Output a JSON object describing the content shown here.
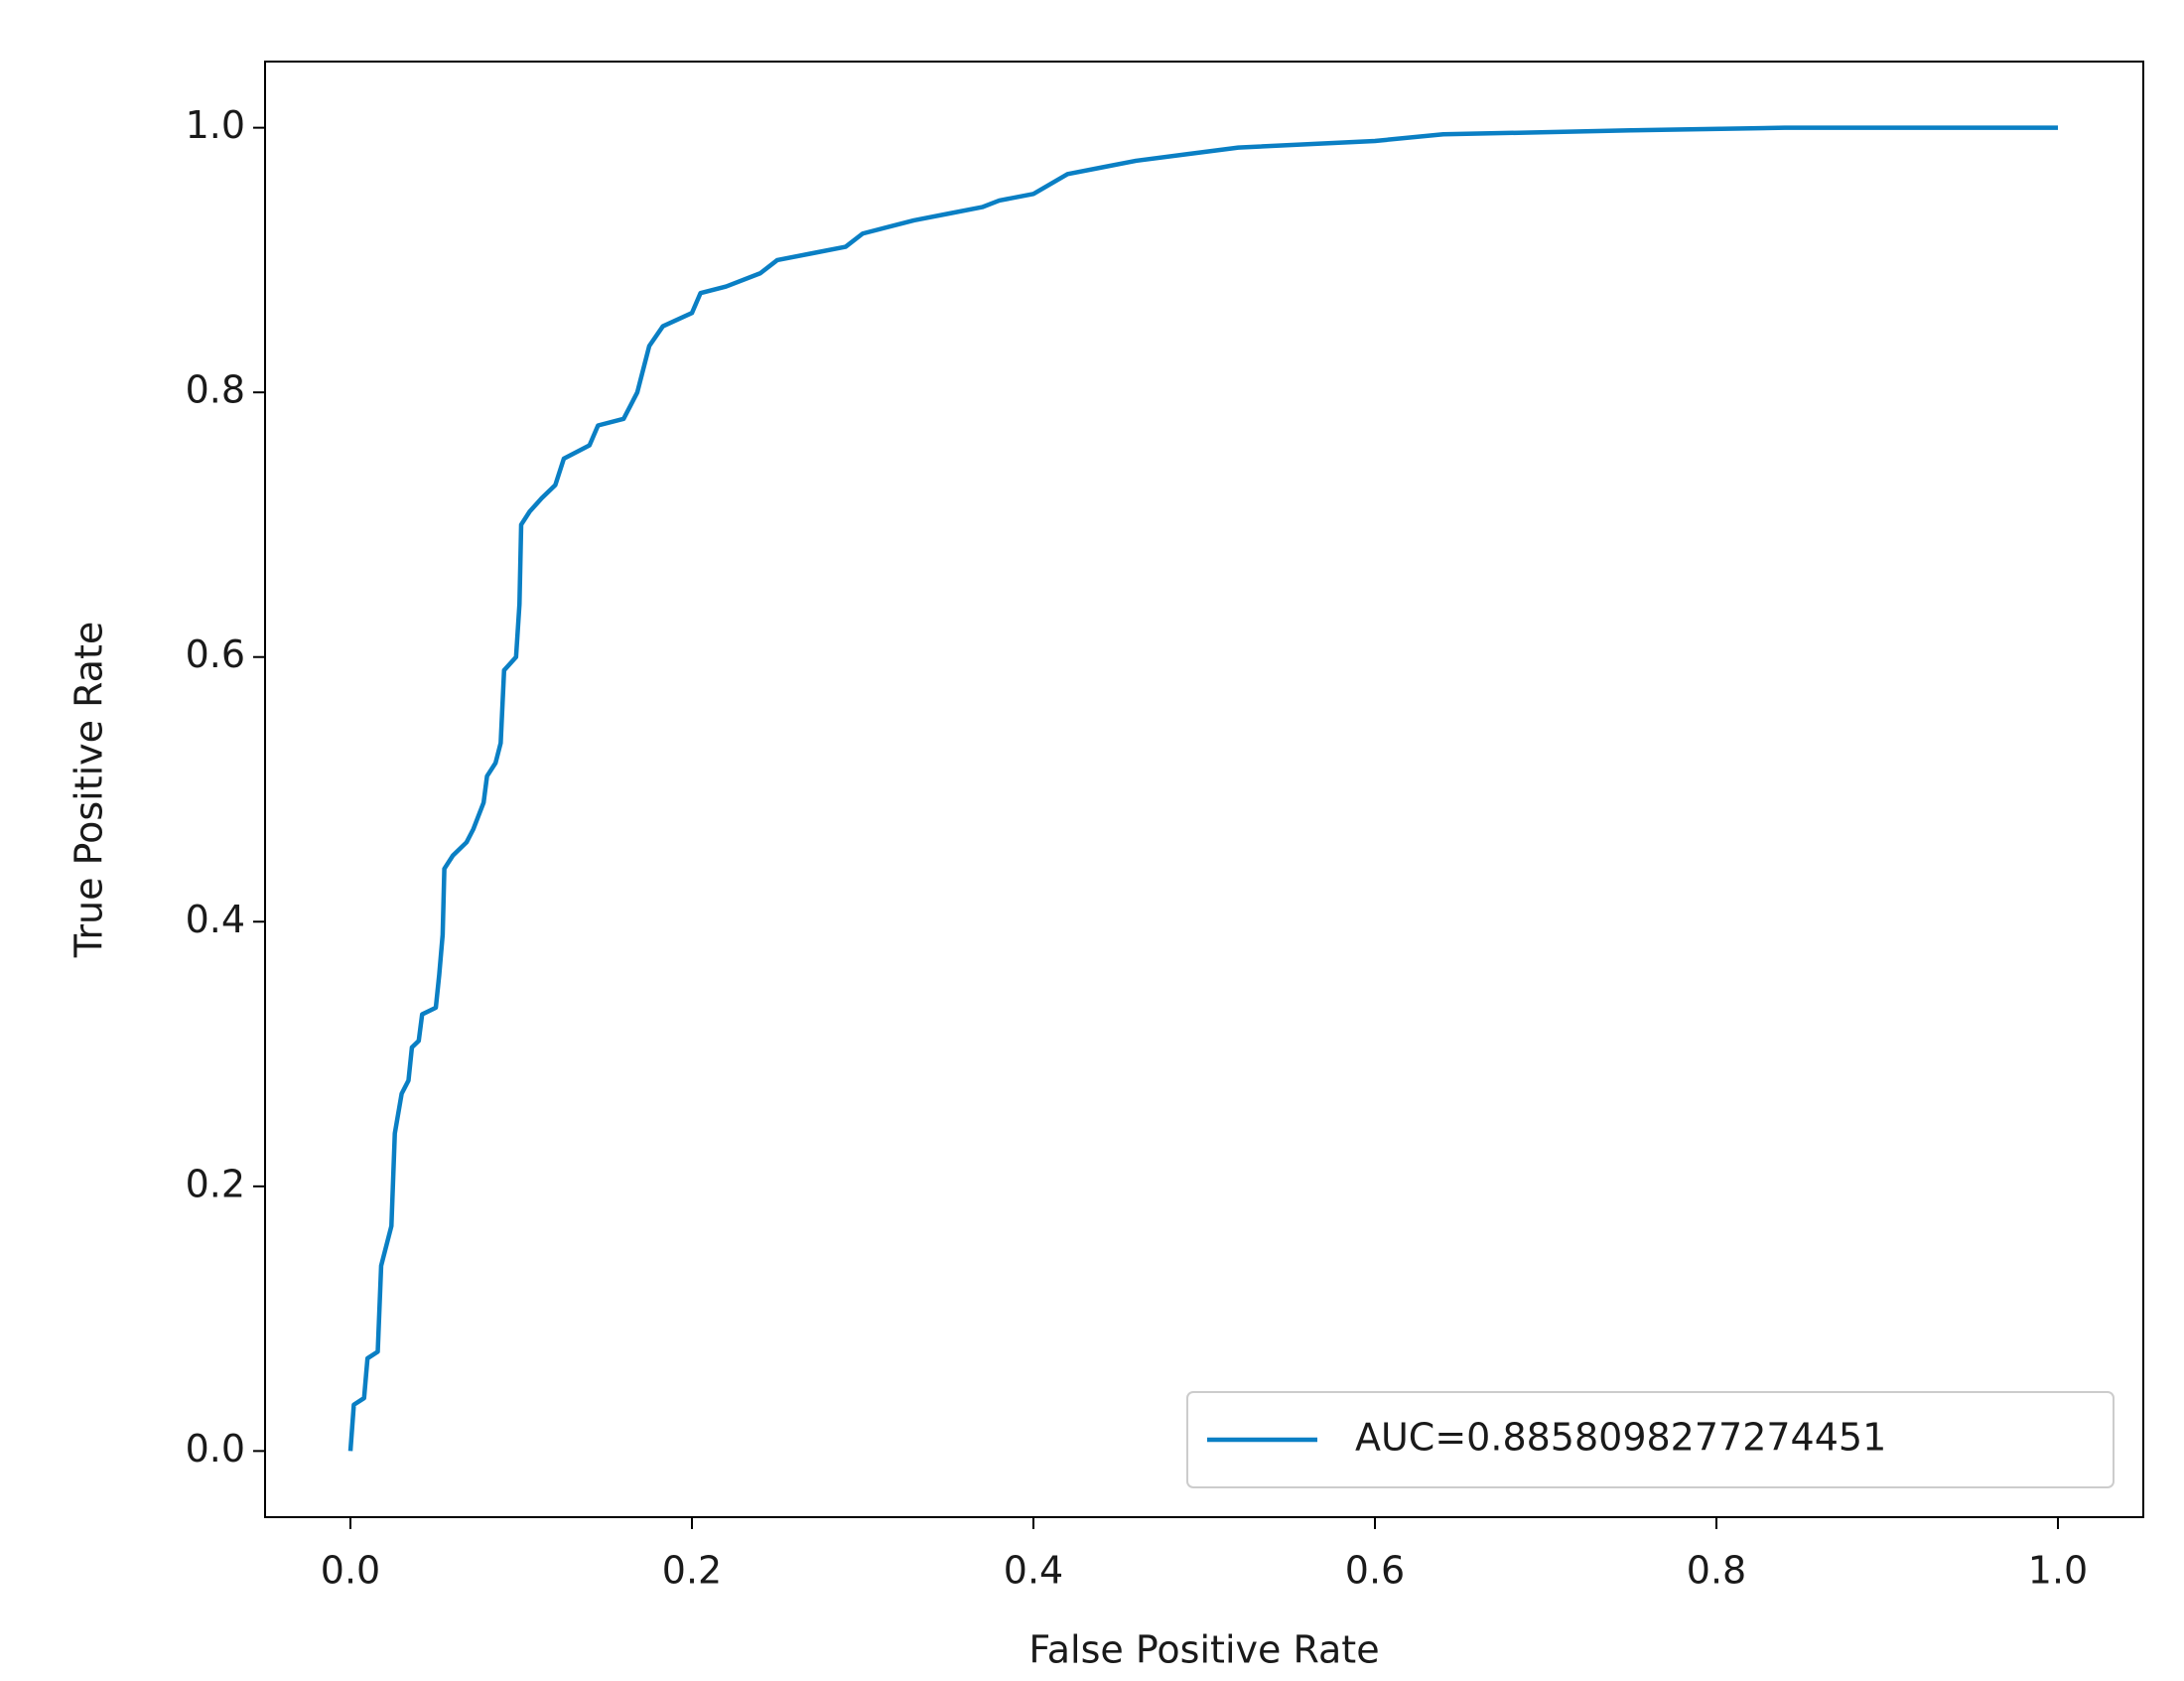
{
  "chart_data": {
    "type": "line",
    "x_label": "False Positive Rate",
    "y_label": "True Positive Rate",
    "xlim": [
      -0.05,
      1.05
    ],
    "ylim": [
      -0.05,
      1.05
    ],
    "xticks": [
      {
        "value": 0,
        "label": "0.0"
      },
      0.2,
      0.4,
      0.6,
      0.8,
      {
        "value": 1,
        "label": "1.0"
      }
    ],
    "yticks": [
      {
        "value": 0,
        "label": "0.0"
      },
      0.2,
      0.4,
      0.6,
      0.8,
      {
        "value": 1,
        "label": "1.0"
      }
    ],
    "legend": "lower right",
    "x": [
      0.0,
      0.002,
      0.008,
      0.01,
      0.016,
      0.018,
      0.024,
      0.026,
      0.03,
      0.034,
      0.036,
      0.04,
      0.042,
      0.05,
      0.052,
      0.054,
      0.055,
      0.06,
      0.068,
      0.072,
      0.078,
      0.08,
      0.085,
      0.088,
      0.09,
      0.097,
      0.099,
      0.1,
      0.105,
      0.112,
      0.12,
      0.125,
      0.14,
      0.145,
      0.16,
      0.168,
      0.17,
      0.175,
      0.183,
      0.2,
      0.205,
      0.22,
      0.24,
      0.25,
      0.27,
      0.29,
      0.3,
      0.33,
      0.35,
      0.37,
      0.38,
      0.4,
      0.42,
      0.44,
      0.46,
      0.49,
      0.52,
      0.6,
      0.64,
      0.75,
      0.84,
      1.0
    ],
    "series": [
      {
        "name": "AUC=0.8858098277274451",
        "color": "#0a7fc4",
        "values": [
          0.0,
          0.035,
          0.04,
          0.07,
          0.075,
          0.14,
          0.17,
          0.24,
          0.27,
          0.28,
          0.305,
          0.31,
          0.33,
          0.335,
          0.36,
          0.39,
          0.44,
          0.45,
          0.46,
          0.47,
          0.49,
          0.51,
          0.52,
          0.535,
          0.59,
          0.6,
          0.64,
          0.7,
          0.71,
          0.72,
          0.73,
          0.75,
          0.76,
          0.775,
          0.78,
          0.8,
          0.81,
          0.835,
          0.85,
          0.86,
          0.875,
          0.88,
          0.89,
          0.9,
          0.905,
          0.91,
          0.92,
          0.93,
          0.935,
          0.94,
          0.945,
          0.95,
          0.965,
          0.97,
          0.975,
          0.98,
          0.985,
          0.99,
          0.995,
          0.998,
          1.0,
          1.0
        ]
      }
    ]
  }
}
